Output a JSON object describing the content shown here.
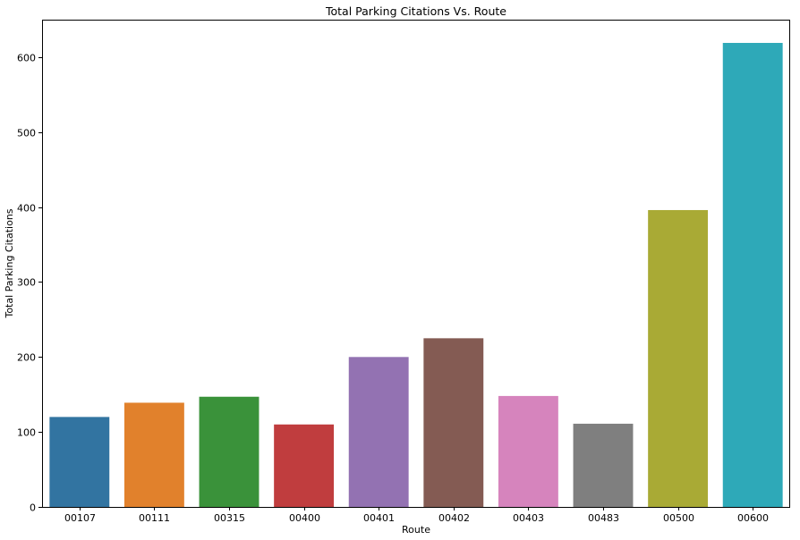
{
  "chart_data": {
    "type": "bar",
    "title": "Total Parking Citations Vs. Route",
    "xlabel": "Route",
    "ylabel": "Total Parking Citations",
    "categories": [
      "00107",
      "00111",
      "00315",
      "00400",
      "00401",
      "00402",
      "00403",
      "00483",
      "00500",
      "00600"
    ],
    "values": [
      120,
      139,
      147,
      110,
      200,
      225,
      148,
      111,
      396,
      619
    ],
    "colors": [
      "#3274a1",
      "#e1812c",
      "#3a923a",
      "#c03d3e",
      "#9372b2",
      "#845b53",
      "#d684bd",
      "#7f7f7f",
      "#a9aa35",
      "#2ea9b8"
    ],
    "ylim": [
      0,
      650
    ],
    "yticks": [
      0,
      100,
      200,
      300,
      400,
      500,
      600
    ],
    "grid": false
  }
}
